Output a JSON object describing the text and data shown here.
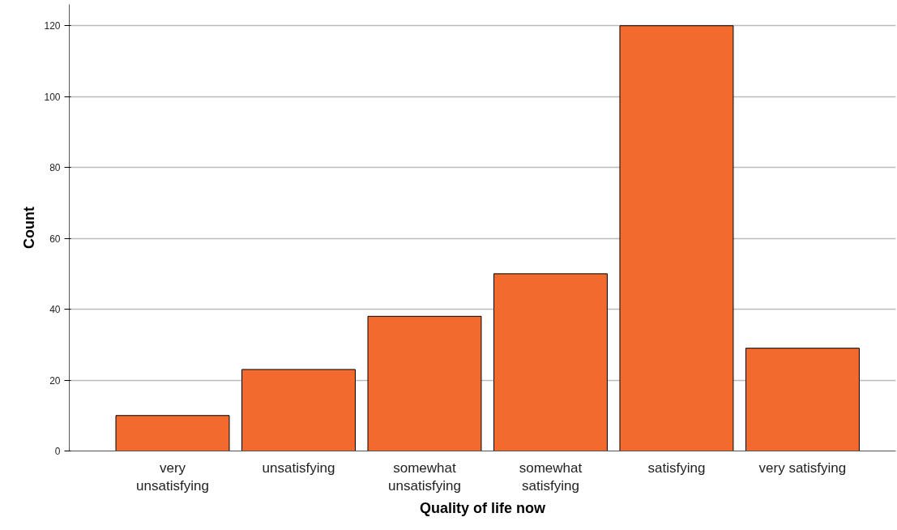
{
  "chart_data": {
    "type": "bar",
    "xlabel": "Quality of life now",
    "ylabel": "Count",
    "categories": [
      "very unsatisfying",
      "unsatisfying",
      "somewhat unsatisfying",
      "somewhat satisfying",
      "satisfying",
      "very satisfying"
    ],
    "values": [
      10,
      23,
      38,
      50,
      120,
      29
    ],
    "color": "#f26a2e",
    "ylim": [
      0,
      126
    ],
    "yticks": [
      0,
      20,
      40,
      60,
      80,
      100,
      120
    ],
    "grid": "y"
  }
}
